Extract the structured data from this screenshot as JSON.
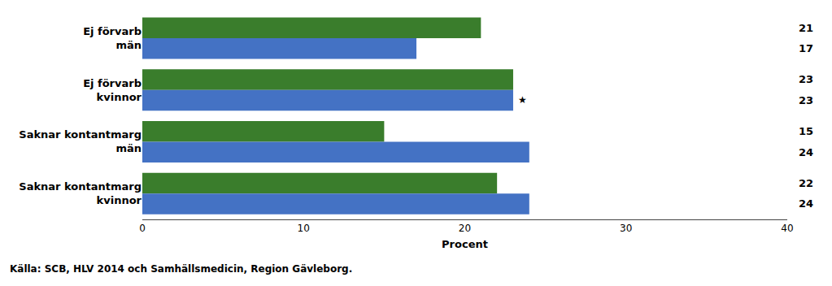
{
  "chart_data": {
    "type": "bar",
    "orientation": "horizontal",
    "categories": [
      "Ej förvarb\nmän",
      "Ej förvarb\nkvinnor",
      "Saknar kontantmarg\nmän",
      "Saknar kontantmarg\nkvinnor"
    ],
    "series": [
      {
        "color": "#3a7d2c",
        "values": [
          21,
          23,
          15,
          22
        ]
      },
      {
        "color": "#4472c4",
        "values": [
          17,
          23,
          24,
          24
        ],
        "annotations": [
          null,
          "★",
          null,
          null
        ]
      }
    ],
    "xlabel": "Procent",
    "xlim": [
      0,
      40
    ],
    "xticks": [
      0,
      10,
      20,
      30,
      40
    ],
    "grid": false,
    "data_labels": true,
    "caption": "Källa: SCB, HLV 2014 och Samhällsmedicin, Region Gävleborg."
  }
}
